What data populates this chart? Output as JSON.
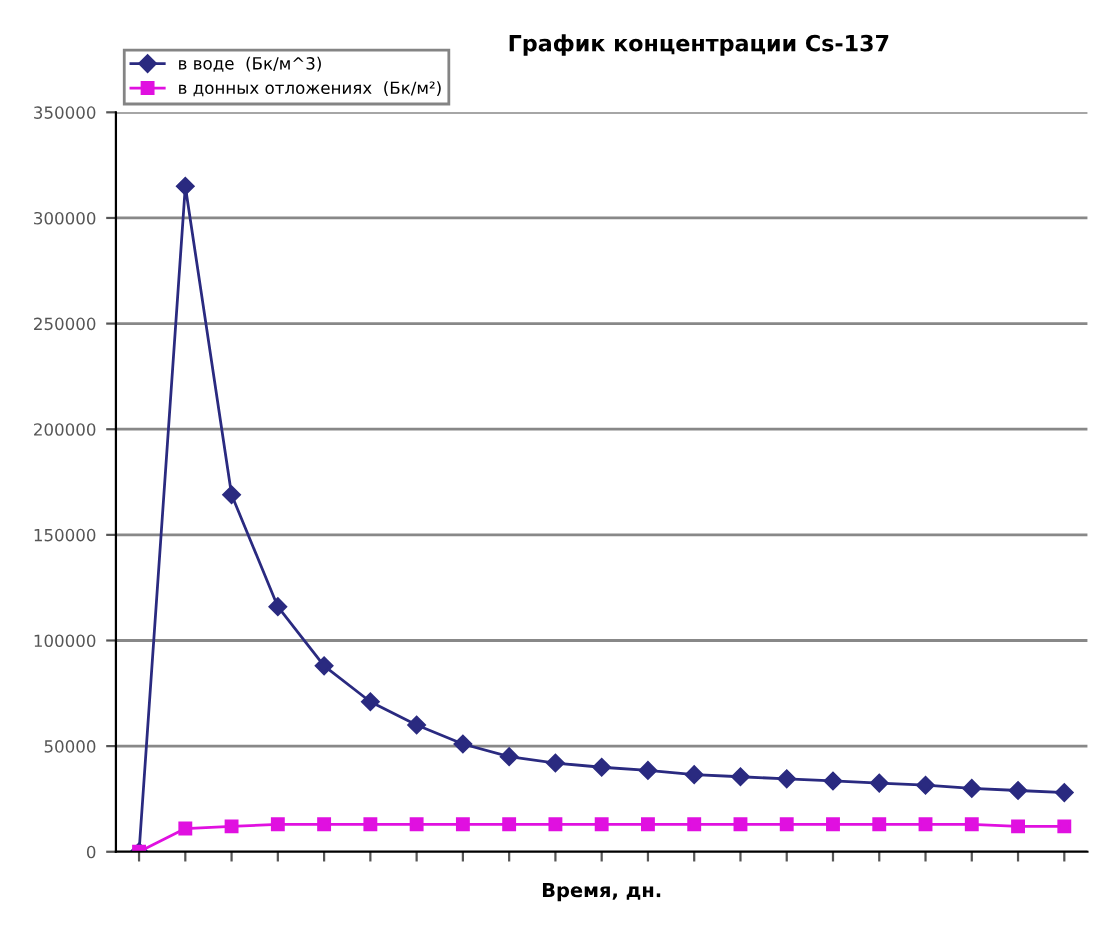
{
  "chart_data": {
    "type": "line",
    "title": "График концентрации Cs-137",
    "xlabel": "Время, дн.",
    "categories": [
      null,
      null,
      null,
      null,
      null,
      null,
      null,
      null,
      null,
      null,
      null,
      null,
      null,
      null,
      null,
      null,
      null,
      null,
      null,
      null,
      null
    ],
    "series": [
      {
        "name": "в воде  (Бк/м^3)",
        "color": "#2a2a80",
        "marker": "diamond",
        "values": [
          0,
          315000,
          169000,
          116000,
          88000,
          71000,
          60000,
          51000,
          45000,
          42000,
          40000,
          38500,
          36500,
          35500,
          34500,
          33500,
          32500,
          31500,
          30000,
          29000,
          28000
        ]
      },
      {
        "name": "в донных отложениях  (Бк/м²)",
        "color": "#e010e0",
        "marker": "square",
        "values": [
          0,
          11000,
          12000,
          13000,
          13000,
          13000,
          13000,
          13000,
          13000,
          13000,
          13000,
          13000,
          13000,
          13000,
          13000,
          13000,
          13000,
          13000,
          13000,
          12000,
          12000
        ]
      }
    ],
    "ylim": [
      0,
      350000
    ],
    "yticks": [
      0,
      50000,
      100000,
      150000,
      200000,
      250000,
      300000,
      350000
    ],
    "grid": "y",
    "legend": "top left",
    "line_style": "solid"
  }
}
